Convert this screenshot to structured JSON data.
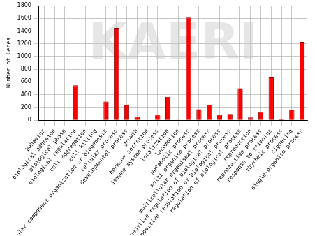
{
  "chart_data": {
    "type": "bar",
    "y_label": "Number of Genes",
    "annotations": [
      "KAERI"
    ],
    "categories": [
      "behavior",
      "biological adhesion",
      "biological phase",
      "biological regulation",
      "cell aggregation",
      "cell killing",
      "cellular component organization or biogenesis",
      "cellular process",
      "developmental process",
      "growth",
      "hormone secretion",
      "immune system process",
      "localization",
      "locomotion",
      "metabolic process",
      "multi-organism process",
      "multicellular organismal process",
      "negative regulation of biological process",
      "positive regulation of biological process",
      "regulation of biological process",
      "reproduction",
      "reproductive process",
      "response to stimulus",
      "rhythmic process",
      "signaling",
      "single-organism process"
    ],
    "values": [
      0,
      0,
      0,
      545,
      0,
      0,
      290,
      1450,
      245,
      50,
      0,
      85,
      365,
      5,
      1610,
      170,
      245,
      85,
      95,
      500,
      40,
      130,
      680,
      15,
      165,
      1230
    ],
    "color": "#ff0000",
    "ylim": [
      0,
      1800
    ],
    "yticks": [
      0,
      200,
      400,
      600,
      800,
      1000,
      1200,
      1400,
      1600,
      1800
    ],
    "grid": true
  }
}
